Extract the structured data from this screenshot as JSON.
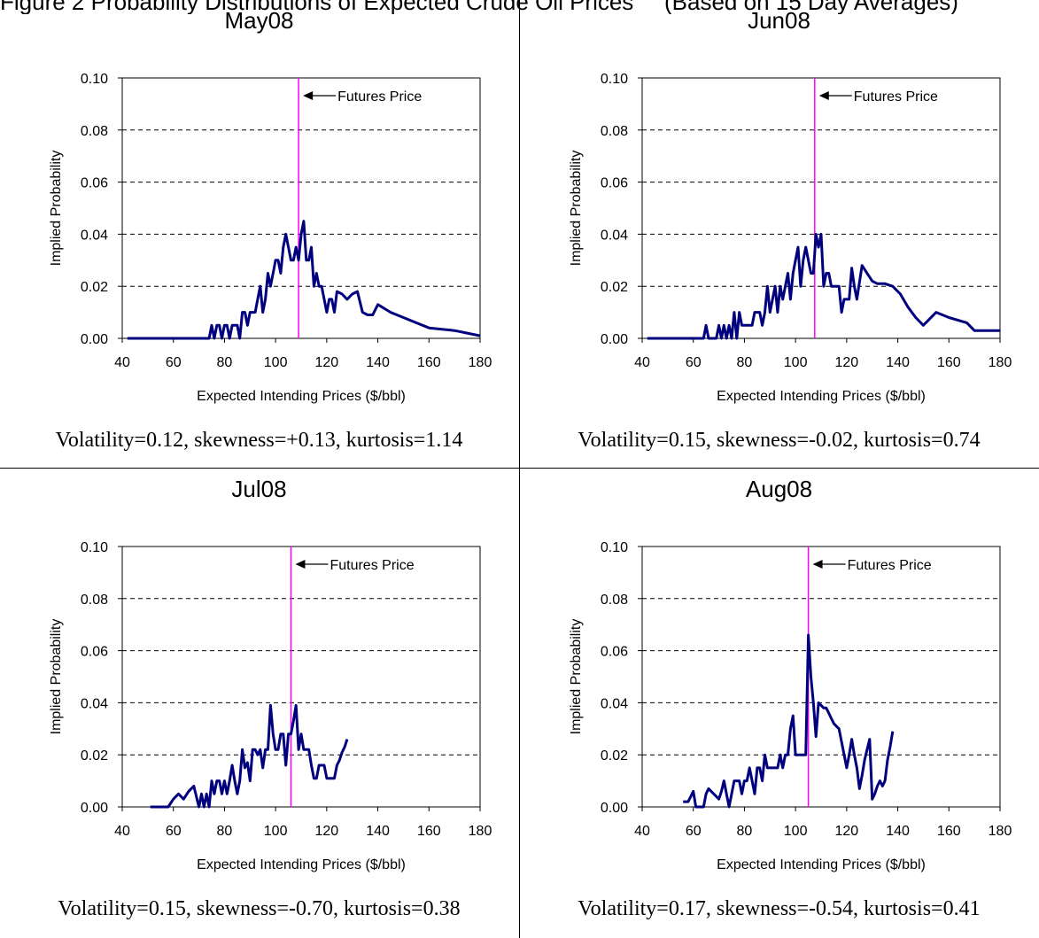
{
  "heading": {
    "left": "Figure 2 Probability Distributions of Expected Crude Oil Prices",
    "right": "(Based on 15 Day Averages)"
  },
  "annotation_label": "Futures Price",
  "colors": {
    "series": "#00007F",
    "futures_line": "#FF00FF",
    "grid": "#000000"
  },
  "chart_data": [
    {
      "type": "line",
      "title": "May08",
      "xlabel": "Expected Intending Prices ($/bbl)",
      "ylabel": "Implied Probability",
      "xlim": [
        40,
        180
      ],
      "ylim": [
        0,
        0.1
      ],
      "xticks": [
        "40",
        "60",
        "80",
        "100",
        "120",
        "140",
        "160",
        "180"
      ],
      "yticks": [
        "0.00",
        "0.02",
        "0.04",
        "0.06",
        "0.08",
        "0.10"
      ],
      "grid": true,
      "futures_price": 109,
      "series": [
        {
          "x": [
            42,
            50,
            60,
            70,
            74,
            75,
            76,
            77,
            78,
            79,
            80,
            81,
            82,
            83,
            84,
            85,
            86,
            87,
            88,
            89,
            90,
            91,
            92,
            93,
            94,
            95,
            96,
            97,
            98,
            99,
            100,
            101,
            102,
            103,
            104,
            105,
            106,
            107,
            108,
            109,
            110,
            111,
            112,
            113,
            114,
            115,
            116,
            117,
            118,
            119,
            120,
            121,
            122,
            123,
            124,
            126,
            128,
            130,
            132,
            134,
            136,
            138,
            140,
            145,
            150,
            160,
            170,
            175,
            180
          ],
          "y": [
            0.0,
            0.0,
            0.0,
            0.0,
            0.0,
            0.005,
            0.0,
            0.005,
            0.005,
            0.0,
            0.005,
            0.005,
            0.0,
            0.005,
            0.005,
            0.005,
            0.0,
            0.01,
            0.01,
            0.005,
            0.01,
            0.01,
            0.01,
            0.015,
            0.02,
            0.01,
            0.015,
            0.025,
            0.02,
            0.025,
            0.03,
            0.03,
            0.025,
            0.035,
            0.04,
            0.035,
            0.03,
            0.03,
            0.035,
            0.03,
            0.04,
            0.045,
            0.03,
            0.03,
            0.035,
            0.02,
            0.025,
            0.02,
            0.02,
            0.015,
            0.01,
            0.015,
            0.015,
            0.01,
            0.018,
            0.017,
            0.015,
            0.017,
            0.018,
            0.01,
            0.009,
            0.009,
            0.013,
            0.01,
            0.008,
            0.004,
            0.003,
            0.002,
            0.001
          ]
        }
      ],
      "stats": "Volatility=0.12, skewness=+0.13, kurtosis=1.14"
    },
    {
      "type": "line",
      "title": "Jun08",
      "xlabel": "Expected Intending Prices ($/bbl)",
      "ylabel": "Implied Probability",
      "xlim": [
        40,
        180
      ],
      "ylim": [
        0,
        0.1
      ],
      "xticks": [
        "40",
        "60",
        "80",
        "100",
        "120",
        "140",
        "160",
        "180"
      ],
      "yticks": [
        "0.00",
        "0.02",
        "0.04",
        "0.06",
        "0.08",
        "0.10"
      ],
      "grid": true,
      "futures_price": 107.5,
      "series": [
        {
          "x": [
            42,
            50,
            60,
            64,
            65,
            66,
            67,
            68,
            69,
            70,
            71,
            72,
            73,
            74,
            75,
            76,
            77,
            78,
            79,
            80,
            81,
            82,
            83,
            84,
            85,
            86,
            87,
            88,
            89,
            90,
            91,
            92,
            93,
            94,
            95,
            96,
            97,
            98,
            99,
            100,
            101,
            102,
            103,
            104,
            105,
            106,
            107,
            108,
            109,
            110,
            111,
            112,
            113,
            114,
            115,
            116,
            117,
            118,
            119,
            120,
            121,
            122,
            123,
            124,
            126,
            128,
            130,
            132,
            135,
            138,
            141,
            144,
            147,
            150,
            155,
            160,
            167,
            170,
            180
          ],
          "y": [
            0.0,
            0.0,
            0.0,
            0.0,
            0.005,
            0.0,
            0.0,
            0.0,
            0.0,
            0.005,
            0.0,
            0.005,
            0.0,
            0.005,
            0.0,
            0.01,
            0.0,
            0.01,
            0.005,
            0.005,
            0.005,
            0.005,
            0.005,
            0.01,
            0.01,
            0.01,
            0.005,
            0.01,
            0.02,
            0.01,
            0.015,
            0.02,
            0.01,
            0.02,
            0.015,
            0.02,
            0.025,
            0.015,
            0.025,
            0.03,
            0.035,
            0.02,
            0.03,
            0.035,
            0.03,
            0.025,
            0.025,
            0.04,
            0.035,
            0.04,
            0.02,
            0.025,
            0.025,
            0.02,
            0.02,
            0.02,
            0.02,
            0.01,
            0.015,
            0.015,
            0.015,
            0.027,
            0.02,
            0.015,
            0.028,
            0.025,
            0.022,
            0.021,
            0.021,
            0.02,
            0.017,
            0.012,
            0.008,
            0.005,
            0.01,
            0.008,
            0.006,
            0.003,
            0.003
          ]
        }
      ],
      "stats": "Volatility=0.15, skewness=-0.02, kurtosis=0.74"
    },
    {
      "type": "line",
      "title": "Jul08",
      "xlabel": "Expected Intending Prices ($/bbl)",
      "ylabel": "Implied Probability",
      "xlim": [
        40,
        180
      ],
      "ylim": [
        0,
        0.1
      ],
      "xticks": [
        "40",
        "60",
        "80",
        "100",
        "120",
        "140",
        "160",
        "180"
      ],
      "yticks": [
        "0.00",
        "0.02",
        "0.04",
        "0.06",
        "0.08",
        "0.10"
      ],
      "grid": true,
      "futures_price": 106,
      "series": [
        {
          "x": [
            51,
            55,
            58,
            60,
            62,
            64,
            66,
            68,
            70,
            71,
            72,
            73,
            74,
            75,
            76,
            77,
            78,
            79,
            80,
            81,
            82,
            83,
            84,
            85,
            86,
            87,
            88,
            89,
            90,
            91,
            92,
            93,
            94,
            95,
            96,
            97,
            98,
            99,
            100,
            101,
            102,
            103,
            104,
            105,
            106,
            107,
            108,
            109,
            110,
            111,
            112,
            113,
            114,
            115,
            116,
            117,
            118,
            119,
            120,
            121,
            122,
            123,
            124,
            125,
            126,
            127,
            128
          ],
          "y": [
            0.0,
            0.0,
            0.0,
            0.003,
            0.005,
            0.003,
            0.006,
            0.008,
            0.0,
            0.005,
            0.0,
            0.005,
            0.0,
            0.01,
            0.005,
            0.01,
            0.01,
            0.005,
            0.01,
            0.005,
            0.01,
            0.016,
            0.01,
            0.005,
            0.01,
            0.022,
            0.015,
            0.017,
            0.01,
            0.022,
            0.022,
            0.02,
            0.022,
            0.015,
            0.022,
            0.022,
            0.039,
            0.028,
            0.022,
            0.022,
            0.028,
            0.028,
            0.016,
            0.028,
            0.028,
            0.033,
            0.039,
            0.022,
            0.028,
            0.022,
            0.022,
            0.022,
            0.016,
            0.011,
            0.011,
            0.016,
            0.016,
            0.016,
            0.011,
            0.011,
            0.011,
            0.011,
            0.016,
            0.018,
            0.021,
            0.023,
            0.026
          ]
        }
      ],
      "stats": "Volatility=0.15, skewness=-0.70, kurtosis=0.38"
    },
    {
      "type": "line",
      "title": "Aug08",
      "xlabel": "Expected Intending Prices ($/bbl)",
      "ylabel": "Implied Probability",
      "xlim": [
        40,
        180
      ],
      "ylim": [
        0,
        0.1
      ],
      "xticks": [
        "40",
        "60",
        "80",
        "100",
        "120",
        "140",
        "160",
        "180"
      ],
      "yticks": [
        "0.00",
        "0.02",
        "0.04",
        "0.06",
        "0.08",
        "0.10"
      ],
      "grid": true,
      "futures_price": 105,
      "series": [
        {
          "x": [
            56,
            58,
            60,
            61,
            62,
            63,
            64,
            65,
            66,
            67,
            68,
            69,
            70,
            71,
            72,
            73,
            74,
            75,
            76,
            77,
            78,
            79,
            80,
            81,
            82,
            83,
            84,
            85,
            86,
            87,
            88,
            89,
            90,
            91,
            92,
            93,
            94,
            95,
            96,
            97,
            98,
            99,
            100,
            101,
            102,
            103,
            104,
            105,
            106,
            107,
            108,
            109,
            110,
            111,
            112,
            113,
            114,
            115,
            116,
            117,
            118,
            119,
            120,
            121,
            122,
            123,
            124,
            125,
            126,
            127,
            128,
            129,
            130,
            131,
            132,
            133,
            134,
            135,
            136,
            137,
            138
          ],
          "y": [
            0.002,
            0.002,
            0.006,
            0.0,
            0.0,
            0.0,
            0.0,
            0.005,
            0.007,
            0.006,
            0.005,
            0.004,
            0.003,
            0.006,
            0.01,
            0.005,
            0.0,
            0.005,
            0.01,
            0.01,
            0.01,
            0.005,
            0.01,
            0.01,
            0.015,
            0.01,
            0.005,
            0.015,
            0.015,
            0.01,
            0.02,
            0.015,
            0.015,
            0.015,
            0.015,
            0.015,
            0.02,
            0.015,
            0.02,
            0.02,
            0.03,
            0.035,
            0.02,
            0.02,
            0.02,
            0.02,
            0.02,
            0.066,
            0.05,
            0.04,
            0.027,
            0.04,
            0.039,
            0.038,
            0.038,
            0.036,
            0.034,
            0.032,
            0.031,
            0.03,
            0.025,
            0.02,
            0.015,
            0.02,
            0.026,
            0.02,
            0.015,
            0.007,
            0.012,
            0.018,
            0.022,
            0.026,
            0.003,
            0.005,
            0.008,
            0.01,
            0.008,
            0.01,
            0.018,
            0.023,
            0.029
          ]
        }
      ],
      "stats": "Volatility=0.17, skewness=-0.54, kurtosis=0.41"
    }
  ]
}
